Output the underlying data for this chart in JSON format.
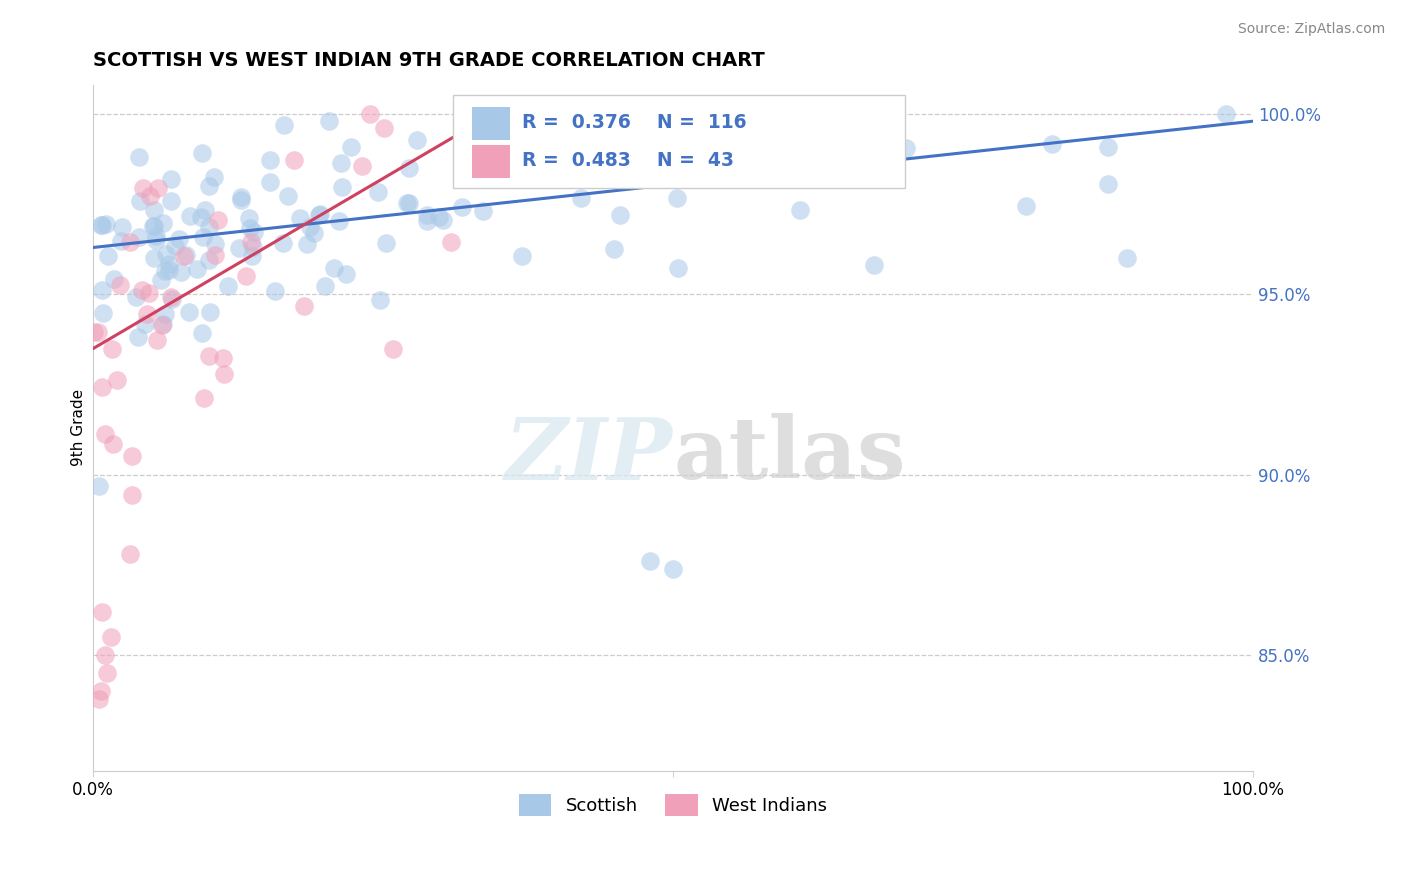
{
  "title": "SCOTTISH VS WEST INDIAN 9TH GRADE CORRELATION CHART",
  "source": "Source: ZipAtlas.com",
  "ylabel": "9th Grade",
  "ylabel_right_ticks": [
    "100.0%",
    "95.0%",
    "90.0%",
    "85.0%"
  ],
  "ylabel_right_vals": [
    1.0,
    0.95,
    0.9,
    0.85
  ],
  "xmin": 0.0,
  "xmax": 1.0,
  "ymin": 0.818,
  "ymax": 1.008,
  "scottish_R": 0.376,
  "scottish_N": 116,
  "west_indian_R": 0.483,
  "west_indian_N": 43,
  "scottish_color": "#a8c8e8",
  "west_indian_color": "#f0a0b8",
  "scottish_line_color": "#4472c4",
  "west_indian_line_color": "#d04060",
  "legend_scottish_label": "Scottish",
  "legend_west_indian_label": "West Indians",
  "scot_line_x0": 0.0,
  "scot_line_y0": 0.963,
  "scot_line_x1": 1.0,
  "scot_line_y1": 0.998,
  "wi_line_x0": 0.0,
  "wi_line_y0": 0.935,
  "wi_line_x1": 0.35,
  "wi_line_y1": 1.001
}
